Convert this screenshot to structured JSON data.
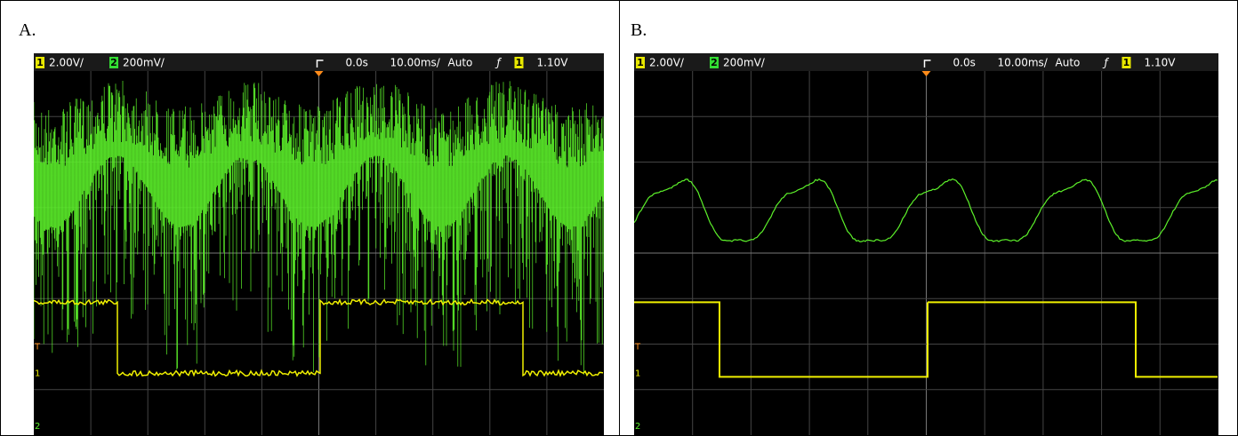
{
  "panels": [
    {
      "label": "A.",
      "status": {
        "ch1": "1",
        "ch1_scale": "2.00V/",
        "ch2": "2",
        "ch2_scale": "200mV/",
        "delay": "0.0s",
        "timebase": "10.00ms/",
        "mode": "Auto",
        "trig_ch": "1",
        "trig_level": "1.10V"
      },
      "markers": {
        "trigger": "T",
        "ch1": "1",
        "ch2": "2"
      }
    },
    {
      "label": "B.",
      "status": {
        "ch1": "1",
        "ch1_scale": "2.00V/",
        "ch2": "2",
        "ch2_scale": "200mV/",
        "delay": "0.0s",
        "timebase": "10.00ms/",
        "mode": "Auto",
        "trig_ch": "1",
        "trig_level": "1.10V"
      },
      "markers": {
        "trigger": "T",
        "ch1": "1",
        "ch2": "2"
      }
    }
  ]
}
